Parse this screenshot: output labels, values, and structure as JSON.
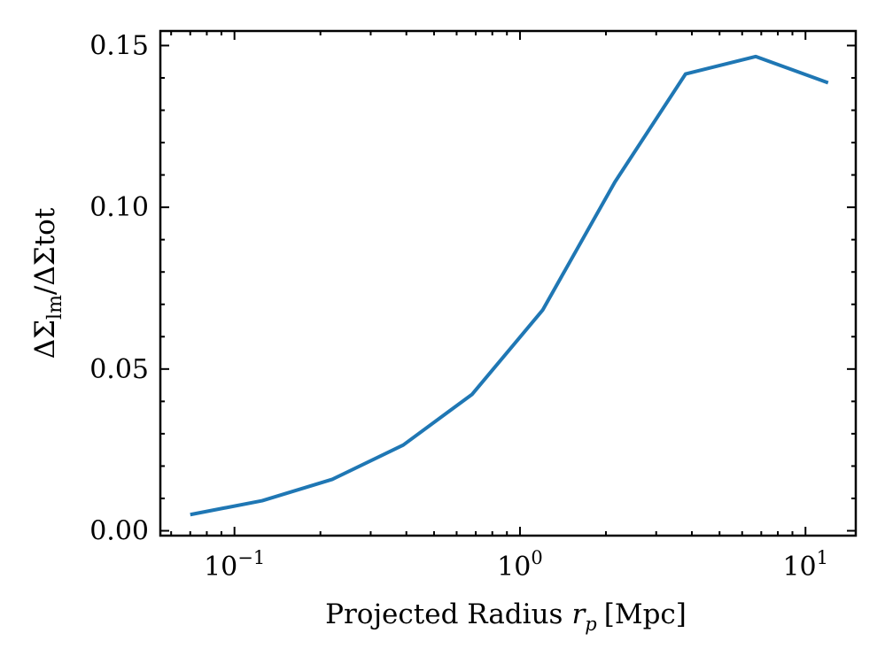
{
  "chart_data": {
    "type": "line",
    "title": "",
    "xlabel": "Projected Radius",
    "xlabel_symbol": "r",
    "xlabel_symbol_subscript": "p",
    "xlabel_unit": "[Mpc]",
    "ylabel_parts": {
      "delta": "Δ",
      "sigma": "Σ",
      "subscript": "lm",
      "slash": "/",
      "denominator": "ΔΣtot"
    },
    "x_scale": "log",
    "xlim": [
      0.055,
      15
    ],
    "ylim": [
      -0.0015,
      0.1545
    ],
    "x_ticks": [
      {
        "value": 0.1,
        "base": "10",
        "exp": "−1"
      },
      {
        "value": 1,
        "base": "10",
        "exp": "0"
      },
      {
        "value": 10,
        "base": "10",
        "exp": "1"
      }
    ],
    "y_ticks": [
      {
        "value": 0.0,
        "label": "0.00"
      },
      {
        "value": 0.05,
        "label": "0.05"
      },
      {
        "value": 0.1,
        "label": "0.10"
      },
      {
        "value": 0.15,
        "label": "0.15"
      }
    ],
    "y_minor_step": 0.01,
    "series": [
      {
        "color": "#1f77b4",
        "x": [
          0.07,
          0.125,
          0.22,
          0.39,
          0.68,
          1.2,
          2.15,
          3.8,
          6.7,
          12.0
        ],
        "y": [
          0.005,
          0.0093,
          0.0159,
          0.0265,
          0.0422,
          0.0682,
          0.1078,
          0.1412,
          0.1466,
          0.1385
        ]
      }
    ],
    "grid": false,
    "legend": "none"
  }
}
